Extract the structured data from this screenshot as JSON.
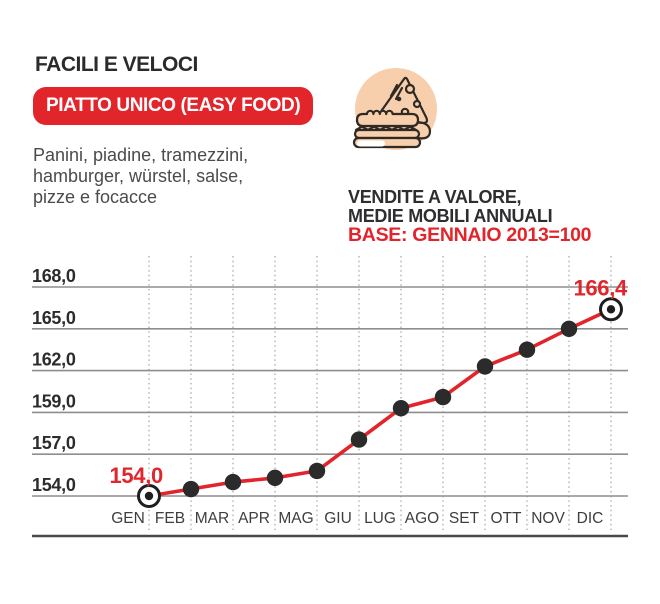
{
  "page": {
    "background": "#ffffff"
  },
  "header": {
    "title": "FACILI E VELOCI",
    "badge_label": "PIATTO UNICO (EASY FOOD)",
    "description_lines": [
      "Panini, piadine, tramezzini,",
      "hamburger, würstel, salse,",
      "pizze e focacce"
    ]
  },
  "icon": {
    "name": "pizza-and-sandwich",
    "background": "#f8cfac",
    "outline": "#2f2a25"
  },
  "chart_data": {
    "type": "line",
    "title_lines": [
      "VENDITE A VALORE,",
      "MEDIE MOBILI ANNUALI"
    ],
    "base_note": "BASE: GENNAIO 2013=100",
    "categories": [
      "GEN",
      "FEB",
      "MAR",
      "APR",
      "MAG",
      "GIU",
      "LUG",
      "AGO",
      "SET",
      "OTT",
      "NOV",
      "DIC"
    ],
    "values": [
      154.0,
      154.5,
      155.0,
      155.3,
      155.8,
      157.7,
      159.3,
      160.1,
      162.3,
      163.5,
      165.0,
      166.4
    ],
    "y_tick_labels": [
      "168,0",
      "165,0",
      "162,0",
      "159,0",
      "157,0",
      "154,0"
    ],
    "y_tick_values": [
      168.0,
      165.0,
      162.0,
      159.0,
      157.0,
      154.0
    ],
    "annotations": [
      {
        "category": "GEN",
        "label": "154,0"
      },
      {
        "category": "DIC",
        "label": "166,4"
      }
    ],
    "highlighted_points": [
      "GEN",
      "DIC"
    ],
    "grid": {
      "horizontal": "solid",
      "vertical": "dotted",
      "y_ticks_equally_spaced": true
    },
    "legend": "none",
    "colors": {
      "line": "#e2242b",
      "point": "#2b2b2b",
      "highlight_ring": "#1e1e1e",
      "grid": "#8e8e8e",
      "vertical_grid": "#9b9b9b",
      "axis_text": "#2c2c2c",
      "month_text": "#3e3e3e",
      "annotation": "#e2242b",
      "baseline": "#4a4a4a"
    }
  }
}
